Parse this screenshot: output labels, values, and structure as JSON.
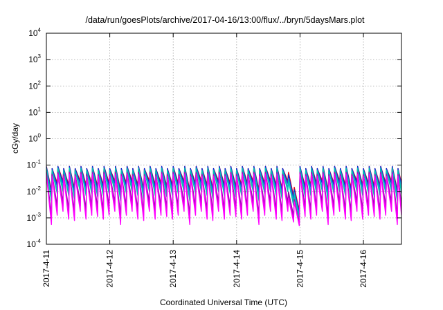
{
  "chart_data": {
    "type": "line",
    "title": "/data/run/goesPlots/archive/2017-04-16/13:00/flux/../bryn/5daysMars.plot",
    "xlabel": "Coordinated Universal Time (UTC)",
    "ylabel": "cGy/day",
    "yscale": "log",
    "ylim_exp": [
      -4,
      4
    ],
    "y_tick_exponents": [
      4,
      3,
      2,
      1,
      0,
      -1,
      -2,
      -3,
      -4
    ],
    "y_tick_base": "10",
    "xlim_days": [
      0,
      5.6
    ],
    "x_ticks": [
      {
        "day": 0,
        "label": "2017-4-11"
      },
      {
        "day": 1,
        "label": "2017-4-12"
      },
      {
        "day": 2,
        "label": "2017-4-13"
      },
      {
        "day": 3,
        "label": "2017-4-14"
      },
      {
        "day": 4,
        "label": "2017-4-15"
      },
      {
        "day": 5,
        "label": "2017-4-16"
      }
    ],
    "grid": true,
    "legend": "none",
    "sawtooth": {
      "cycles_per_day": 11,
      "peak_log": -1.05,
      "dip_event": {
        "start_day": 3.75,
        "end_day": 3.93,
        "low_log": -3.35,
        "recovery_day": 3.95
      }
    },
    "series": [
      {
        "color": "#e0001a",
        "peak_offset": 0.0,
        "trough_log": -1.75
      },
      {
        "color": "#0c2cd4",
        "peak_offset": -0.02,
        "trough_log": -1.85
      },
      {
        "color": "#1a9ad6",
        "peak_offset": -0.06,
        "trough_log": -2.0
      },
      {
        "color": "#00c6b0",
        "peak_offset": -0.1,
        "trough_log": -2.15
      },
      {
        "color": "#7a1a9a",
        "peak_offset": -0.22,
        "trough_log": -2.7
      },
      {
        "color": "#c000c8",
        "peak_offset": -0.26,
        "trough_log": -2.85
      },
      {
        "color": "#ff00ff",
        "peak_offset": -0.3,
        "trough_log": -3.05
      }
    ]
  }
}
